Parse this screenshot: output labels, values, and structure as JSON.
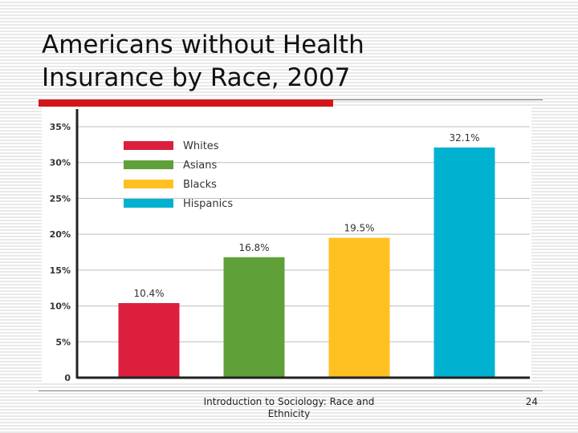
{
  "slide": {
    "title": "Americans without Health Insurance by Race, 2007",
    "footer": "Introduction to Sociology: Race and Ethnicity",
    "page_number": "24"
  },
  "chart_data": {
    "type": "bar",
    "categories": [
      "Whites",
      "Asians",
      "Blacks",
      "Hispanics"
    ],
    "values": [
      10.4,
      16.8,
      19.5,
      32.1
    ],
    "value_labels": [
      "10.4%",
      "16.8%",
      "19.5%",
      "32.1%"
    ],
    "colors": [
      "#dc1f3d",
      "#5fa038",
      "#ffc021",
      "#00b2d0"
    ],
    "ylim": [
      0,
      35
    ],
    "yticks": [
      {
        "value": 0,
        "label": "0"
      },
      {
        "value": 5,
        "label": "5%"
      },
      {
        "value": 10,
        "label": "10%"
      },
      {
        "value": 15,
        "label": "15%"
      },
      {
        "value": 20,
        "label": "20%"
      },
      {
        "value": 25,
        "label": "25%"
      },
      {
        "value": 30,
        "label": "30%"
      },
      {
        "value": 35,
        "label": "35%"
      }
    ],
    "legend": {
      "placement": "top-left",
      "entries": [
        "Whites",
        "Asians",
        "Blacks",
        "Hispanics"
      ]
    },
    "grid": true,
    "title": "",
    "xlabel": "",
    "ylabel": ""
  }
}
